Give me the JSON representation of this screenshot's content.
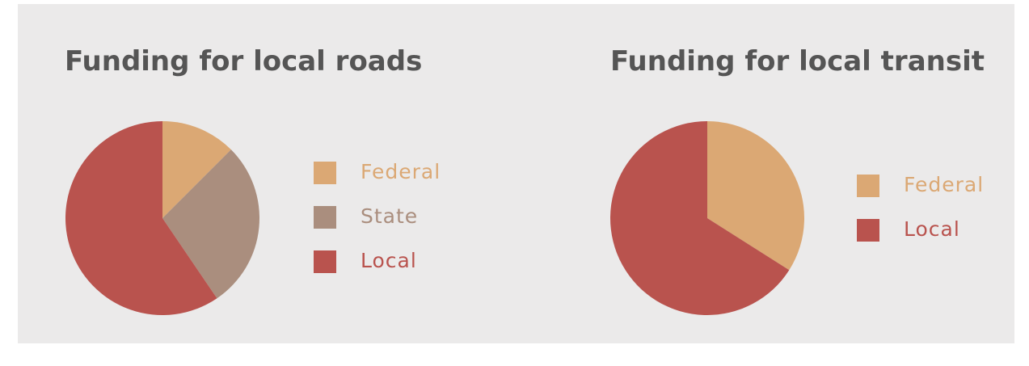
{
  "chart_data": [
    {
      "type": "pie",
      "title": "Funding for local roads",
      "categories": [
        "Federal",
        "State",
        "Local"
      ],
      "values": [
        12.5,
        28,
        59.5
      ],
      "colors": [
        "#dba874",
        "#aa8e7e",
        "#b9534e"
      ]
    },
    {
      "type": "pie",
      "title": "Funding for local transit",
      "categories": [
        "Federal",
        "Local"
      ],
      "values": [
        34,
        66
      ],
      "colors": [
        "#dba874",
        "#b9534e"
      ]
    }
  ]
}
